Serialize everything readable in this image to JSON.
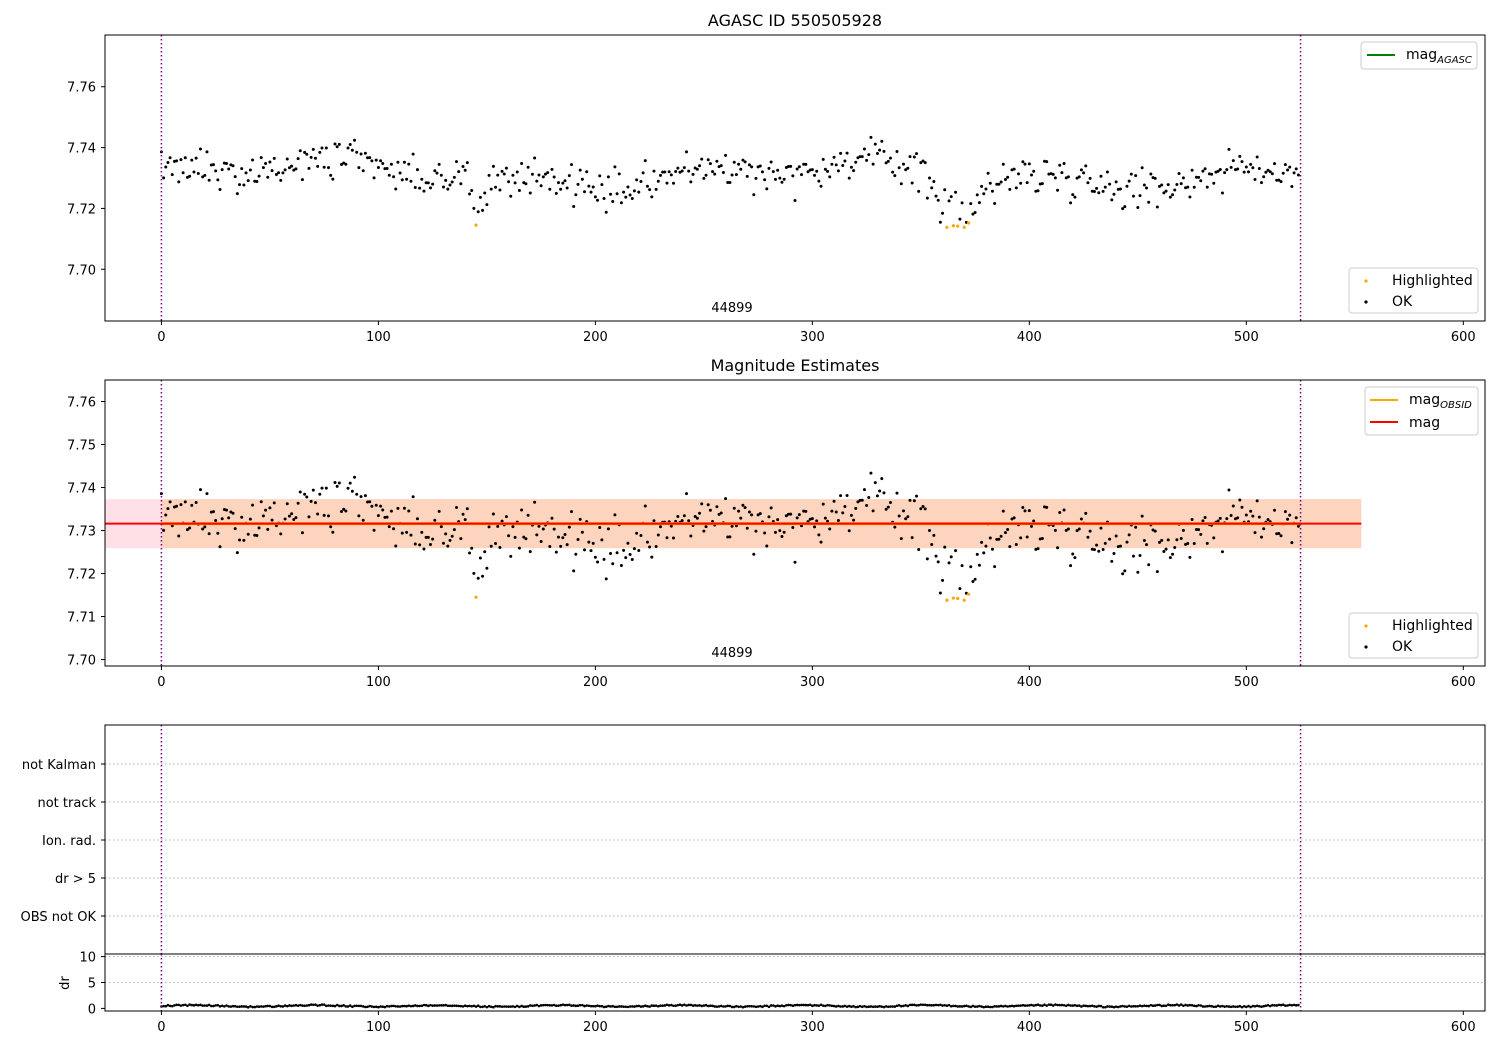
{
  "chart_data": [
    {
      "type": "scatter",
      "title": "AGASC ID 550505928",
      "xlim": [
        -26,
        610
      ],
      "ylim": [
        7.683,
        7.777
      ],
      "xticks": [
        0,
        100,
        200,
        300,
        400,
        500,
        600
      ],
      "yticks": [
        7.7,
        7.72,
        7.74,
        7.76
      ],
      "ytick_labels": [
        "7.70",
        "7.72",
        "7.74",
        "7.76"
      ],
      "obsid_boundaries": [
        0,
        525
      ],
      "obsid_label": "44899",
      "obsid_label_x": 262,
      "legend_lines": [
        {
          "name": "mag",
          "subscript": "AGASC",
          "color": "#008000"
        }
      ],
      "legend_points": [
        {
          "name": "Highlighted",
          "color": "#ffa500"
        },
        {
          "name": "OK",
          "color": "#000000"
        }
      ],
      "n_points": 525,
      "base_level": 7.7315,
      "highlighted": [
        [
          145,
          7.7145
        ],
        [
          362,
          7.7138
        ],
        [
          365,
          7.7143
        ],
        [
          367,
          7.7142
        ],
        [
          370,
          7.7138
        ],
        [
          372,
          7.7152
        ]
      ],
      "dip_centers": [
        [
          145,
          -0.006,
          4
        ],
        [
          366,
          -0.012,
          12
        ]
      ]
    },
    {
      "type": "scatter",
      "title": "Magnitude Estimates",
      "xlim": [
        -26,
        610
      ],
      "ylim": [
        7.6985,
        7.765
      ],
      "xticks": [
        0,
        100,
        200,
        300,
        400,
        500,
        600
      ],
      "yticks": [
        7.7,
        7.71,
        7.72,
        7.73,
        7.74,
        7.75,
        7.76
      ],
      "ytick_labels": [
        "7.70",
        "7.71",
        "7.72",
        "7.73",
        "7.74",
        "7.75",
        "7.76"
      ],
      "obsid_boundaries": [
        0,
        525
      ],
      "obsid_label": "44899",
      "obsid_label_x": 262,
      "mag": 7.7316,
      "mag_band": [
        7.7259,
        7.7373
      ],
      "mag_obsid": 7.7316,
      "mag_obsid_band": [
        7.7259,
        7.7373
      ],
      "legend_lines": [
        {
          "name": "mag",
          "subscript": "OBSID",
          "color": "#ffa500"
        },
        {
          "name": "mag",
          "subscript": "",
          "color": "#ff0000"
        }
      ],
      "legend_points": [
        {
          "name": "Highlighted",
          "color": "#ffa500"
        },
        {
          "name": "OK",
          "color": "#000000"
        }
      ]
    },
    {
      "type": "scatter",
      "title": "",
      "xlim": [
        -26,
        610
      ],
      "flag_labels": [
        "not Kalman",
        "not track",
        "Ion. rad.",
        "dr > 5",
        "OBS not OK"
      ],
      "obsid_boundaries": [
        0,
        525
      ]
    },
    {
      "type": "scatter",
      "title": "",
      "ylabel": "dr",
      "xlim": [
        -26,
        610
      ],
      "ylim": [
        -0.5,
        10.5
      ],
      "yticks": [
        0,
        5,
        10
      ],
      "ytick_labels": [
        "0",
        "5",
        "10"
      ],
      "xticks": [
        0,
        100,
        200,
        300,
        400,
        500,
        600
      ],
      "obsid_boundaries": [
        0,
        525
      ]
    }
  ]
}
